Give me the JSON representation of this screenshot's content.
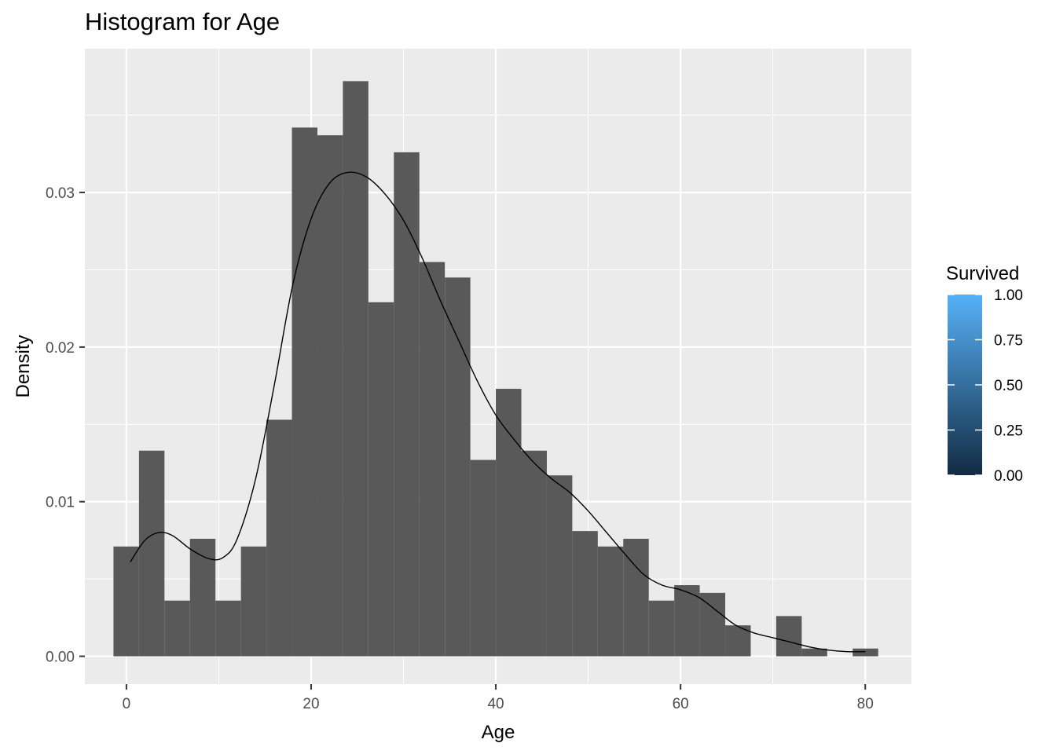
{
  "chart_data": {
    "type": "bar",
    "title": "Histogram for Age",
    "xlabel": "Age",
    "ylabel": "Density",
    "xlim": [
      -4.5,
      85
    ],
    "ylim": [
      -0.0018,
      0.0393
    ],
    "x_ticks": [
      0,
      20,
      40,
      60,
      80
    ],
    "x_tick_labels": [
      "0",
      "20",
      "40",
      "60",
      "80"
    ],
    "y_ticks": [
      0.0,
      0.01,
      0.02,
      0.03
    ],
    "y_tick_labels": [
      "0.00",
      "0.01",
      "0.02",
      "0.03"
    ],
    "bin_width": 2.76,
    "bin_starts": [
      -1.4,
      1.36,
      4.12,
      6.88,
      9.64,
      12.4,
      15.16,
      17.92,
      20.68,
      23.44,
      26.2,
      28.96,
      31.72,
      34.48,
      37.24,
      40.0,
      42.76,
      45.52,
      48.28,
      51.04,
      53.8,
      56.56,
      59.32,
      62.08,
      64.84,
      67.6,
      70.36,
      73.12,
      75.88,
      78.64
    ],
    "values": [
      0.0071,
      0.0133,
      0.0036,
      0.0076,
      0.0036,
      0.0071,
      0.0153,
      0.0342,
      0.0337,
      0.0372,
      0.0229,
      0.0326,
      0.0255,
      0.0245,
      0.0127,
      0.0173,
      0.0133,
      0.0117,
      0.0081,
      0.0071,
      0.0076,
      0.0036,
      0.0046,
      0.0041,
      0.002,
      0.0,
      0.0026,
      0.0005,
      0.0,
      0.0005
    ],
    "bar_color": "#595959",
    "density_curve": {
      "x": [
        0.42,
        2,
        3.5,
        5,
        7,
        9,
        10.5,
        12,
        14,
        16,
        18,
        20,
        22,
        24,
        26,
        28,
        30,
        32,
        34,
        36,
        38,
        40,
        42,
        44,
        46,
        48,
        50,
        52,
        54,
        56,
        58,
        60,
        62,
        64,
        66,
        68,
        70,
        72,
        74,
        76,
        78,
        80
      ],
      "y": [
        0.0061,
        0.0075,
        0.008,
        0.0078,
        0.0069,
        0.0063,
        0.0064,
        0.0076,
        0.0115,
        0.0175,
        0.024,
        0.0283,
        0.0306,
        0.0313,
        0.031,
        0.0299,
        0.0282,
        0.0258,
        0.023,
        0.0204,
        0.0178,
        0.0156,
        0.014,
        0.0126,
        0.0115,
        0.0106,
        0.0094,
        0.008,
        0.0066,
        0.0053,
        0.0046,
        0.0043,
        0.0038,
        0.0029,
        0.002,
        0.0015,
        0.0012,
        0.0009,
        0.0006,
        0.0004,
        0.0003,
        0.0003
      ],
      "color": "#000000"
    },
    "panel_background": "#ebebeb",
    "grid": true,
    "legend": {
      "title": "Survived",
      "position": "right",
      "labels": [
        "0.00",
        "0.25",
        "0.50",
        "0.75",
        "1.00"
      ],
      "values": [
        0,
        0.25,
        0.5,
        0.75,
        1
      ],
      "color_low": "#132b43",
      "color_high": "#56b1f7"
    }
  }
}
